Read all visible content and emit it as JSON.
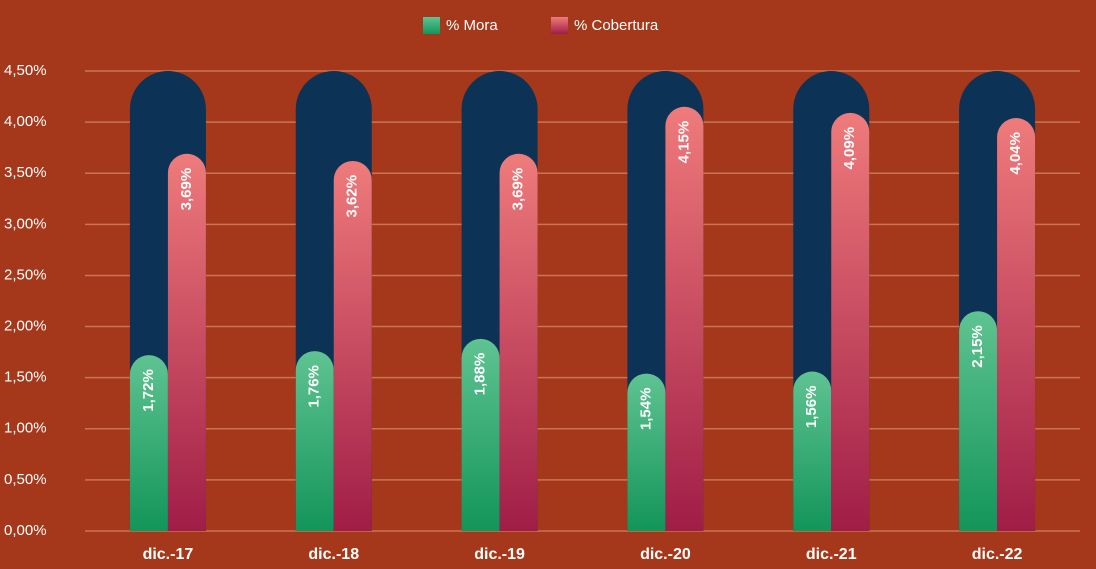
{
  "chart_data": {
    "type": "bar",
    "categories": [
      "dic.-17",
      "dic.-18",
      "dic.-19",
      "dic.-20",
      "dic.-21",
      "dic.-22"
    ],
    "series": [
      {
        "name": "% Mora",
        "color": "#5fc392",
        "values": [
          1.72,
          1.76,
          1.88,
          1.54,
          1.56,
          2.15
        ],
        "value_labels": [
          "1,72%",
          "1,76%",
          "1,88%",
          "1,54%",
          "1,56%",
          "2,15%"
        ]
      },
      {
        "name": "% Cobertura",
        "color": "#ef7b7b",
        "values": [
          3.69,
          3.62,
          3.69,
          4.15,
          4.09,
          4.04
        ],
        "value_labels": [
          "3,69%",
          "3,62%",
          "3,69%",
          "4,15%",
          "4,09%",
          "4,04%"
        ]
      }
    ],
    "ylim": [
      0,
      4.5
    ],
    "yticks": [
      {
        "value": 0,
        "label": "0,00%"
      },
      {
        "value": 0.5,
        "label": "0,50%"
      },
      {
        "value": 1,
        "label": "1,00%"
      },
      {
        "value": 1.5,
        "label": "1,50%"
      },
      {
        "value": 2,
        "label": "2,00%"
      },
      {
        "value": 2.5,
        "label": "2,50%"
      },
      {
        "value": 3,
        "label": "3,00%"
      },
      {
        "value": 3.5,
        "label": "3,50%"
      },
      {
        "value": 4,
        "label": "4,00%"
      },
      {
        "value": 4.5,
        "label": "4,50%"
      }
    ],
    "grid": true,
    "legend": "top"
  }
}
